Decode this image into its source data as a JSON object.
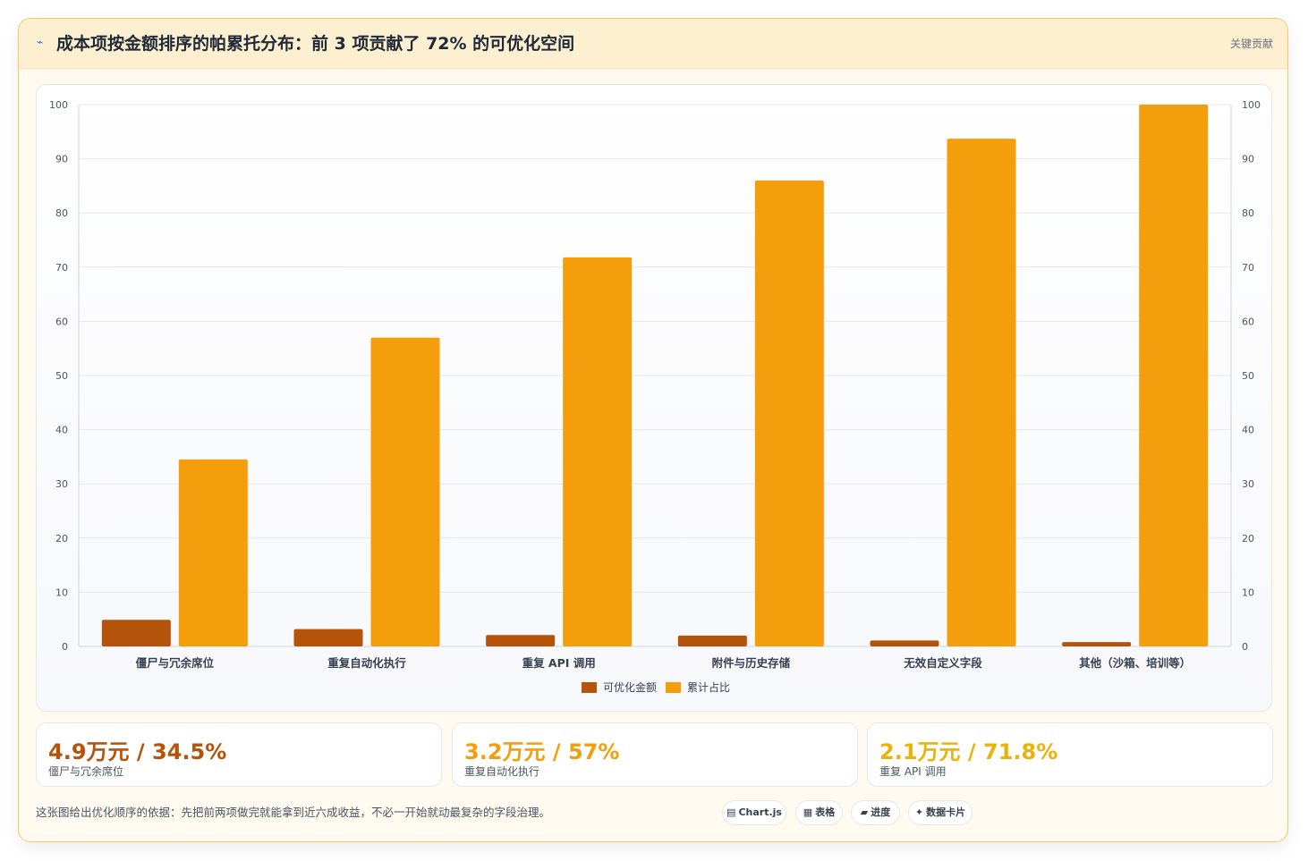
{
  "header": {
    "icon": "trend-icon",
    "title": "成本项按金额排序的帕累托分布：前 3 项贡献了 72% 的可优化空间",
    "tag": "关键贡献"
  },
  "colors": {
    "amount": "#b45309",
    "cumulative": "#f59e0b",
    "accent_orange": "#b45309",
    "accent_amber": "#f59e0b",
    "accent_gold": "#eab308"
  },
  "chart_data": {
    "type": "bar",
    "categories": [
      "僵尸与冗余席位",
      "重复自动化执行",
      "重复 API 调用",
      "附件与历史存储",
      "无效自定义字段",
      "其他（沙箱、培训等）"
    ],
    "series": [
      {
        "name": "可优化金额",
        "values": [
          4.9,
          3.2,
          2.1,
          2.0,
          1.1,
          0.8
        ],
        "color": "#b45309"
      },
      {
        "name": "累计占比",
        "values": [
          34.5,
          57,
          71.8,
          86,
          93.7,
          100
        ],
        "color": "#f59e0b"
      }
    ],
    "ylim": [
      0,
      100
    ],
    "yticks": [
      0,
      10,
      20,
      30,
      40,
      50,
      60,
      70,
      80,
      90,
      100
    ],
    "ytick_labels": [
      "0",
      "10",
      "20",
      "30",
      "40",
      "50",
      "60",
      "70",
      "80",
      "90",
      "100"
    ],
    "y2ticks": [
      0,
      10,
      20,
      30,
      40,
      50,
      60,
      70,
      80,
      90,
      100
    ],
    "y2tick_labels": [
      "0",
      "10",
      "20",
      "30",
      "40",
      "50",
      "60",
      "70",
      "80",
      "90",
      "100"
    ],
    "grid": true,
    "legend_position": "bottom"
  },
  "stats": [
    {
      "value": "4.9万元 / 34.5%",
      "label": "僵尸与冗余席位",
      "color": "#b45309"
    },
    {
      "value": "3.2万元 / 57%",
      "label": "重复自动化执行",
      "color": "#f59e0b"
    },
    {
      "value": "2.1万元 / 71.8%",
      "label": "重复 API 调用",
      "color": "#eab308"
    }
  ],
  "footer": {
    "note": "这张图给出优化顺序的依据：先把前两项做完就能拿到近六成收益，不必一开始就动最复杂的字段治理。",
    "chips": [
      {
        "icon": "chart-icon",
        "glyph": "▤",
        "label": "Chart.js"
      },
      {
        "icon": "table-icon",
        "glyph": "▦",
        "label": "表格"
      },
      {
        "icon": "progress-icon",
        "glyph": "▰",
        "label": "进度"
      },
      {
        "icon": "sparkle-icon",
        "glyph": "✦",
        "label": "数据卡片"
      }
    ]
  }
}
